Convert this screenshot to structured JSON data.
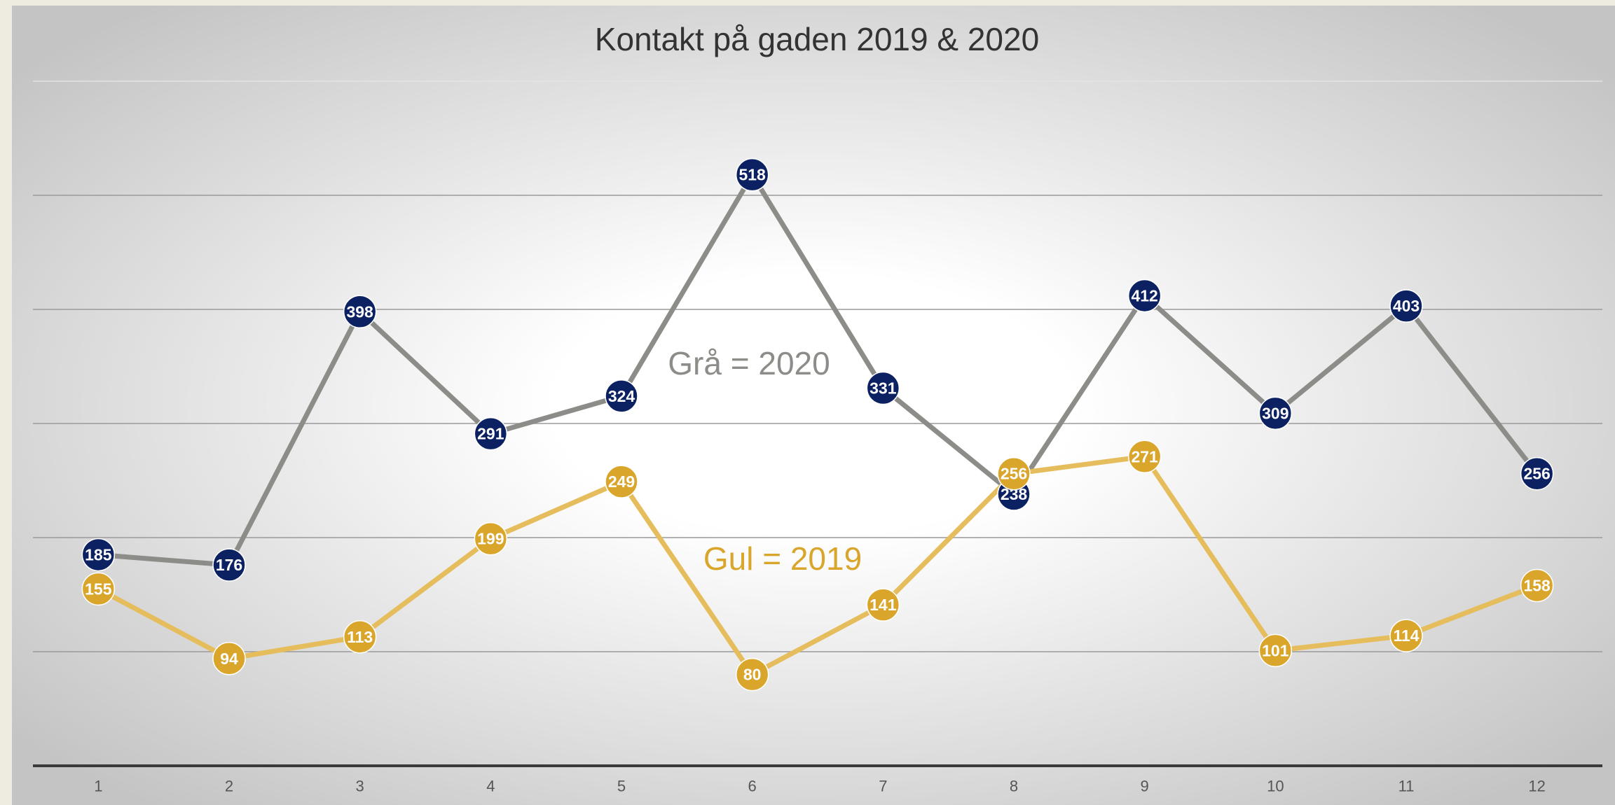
{
  "chart_data": {
    "type": "line",
    "title": "Kontakt på gaden 2019 & 2020",
    "categories": [
      "1",
      "2",
      "3",
      "4",
      "5",
      "6",
      "7",
      "8",
      "9",
      "10",
      "11",
      "12"
    ],
    "series": [
      {
        "name": "Grå = 2020",
        "color": "#8c8c88",
        "marker_color": "#0b2161",
        "values": [
          185,
          176,
          398,
          291,
          324,
          518,
          331,
          238,
          412,
          309,
          403,
          256
        ]
      },
      {
        "name": "Gul = 2019",
        "color": "#e6bd5c",
        "marker_color": "#d9a52b",
        "label_color": "#d9a52b",
        "values": [
          155,
          94,
          113,
          199,
          249,
          80,
          141,
          256,
          271,
          101,
          114,
          158
        ]
      }
    ],
    "ylim": [
      0,
      600
    ],
    "yticks": [
      0,
      100,
      200,
      300,
      400,
      500,
      600
    ],
    "grid": true
  }
}
